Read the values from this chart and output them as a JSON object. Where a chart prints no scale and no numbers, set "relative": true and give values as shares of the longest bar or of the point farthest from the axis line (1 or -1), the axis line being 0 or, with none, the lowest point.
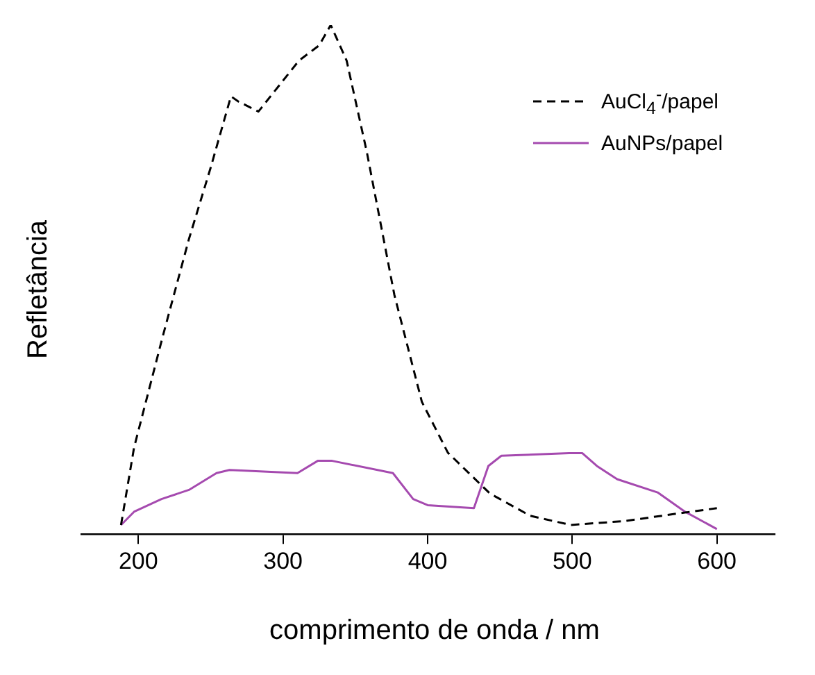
{
  "chart_data": {
    "type": "line",
    "relative": true,
    "xlabel": "comprimento de onda / nm",
    "ylabel": "Refletância",
    "xlim": [
      160,
      640
    ],
    "xticks": [
      200,
      300,
      400,
      500,
      600
    ],
    "legend": "top right",
    "marker": "none",
    "grid": false,
    "series": [
      {
        "name": "AuCl$_{4}$$^{-}$/papel",
        "color": "#000000",
        "line_style": "dashed",
        "x": [
          188,
          197,
          217,
          235,
          250,
          264,
          269,
          283,
          297,
          311,
          325,
          333,
          344,
          358,
          377,
          396,
          414,
          443,
          471,
          499,
          537,
          574,
          600
        ],
        "values": [
          0.018,
          0.17,
          0.39,
          0.58,
          0.72,
          0.86,
          0.85,
          0.83,
          0.88,
          0.93,
          0.96,
          1,
          0.93,
          0.75,
          0.47,
          0.26,
          0.16,
          0.08,
          0.036,
          0.018,
          0.026,
          0.041,
          0.051
        ]
      },
      {
        "name": "AuNPs/papel",
        "color": "#a54aaf",
        "line_style": "solid",
        "x": [
          188,
          197,
          216,
          235,
          254,
          263,
          310,
          324,
          334,
          376,
          390,
          400,
          432,
          442,
          451,
          498,
          507,
          517,
          531,
          559,
          578,
          600
        ],
        "values": [
          0.018,
          0.044,
          0.069,
          0.087,
          0.12,
          0.126,
          0.12,
          0.144,
          0.144,
          0.12,
          0.069,
          0.057,
          0.051,
          0.134,
          0.154,
          0.159,
          0.159,
          0.134,
          0.108,
          0.082,
          0.044,
          0.01
        ]
      }
    ]
  }
}
